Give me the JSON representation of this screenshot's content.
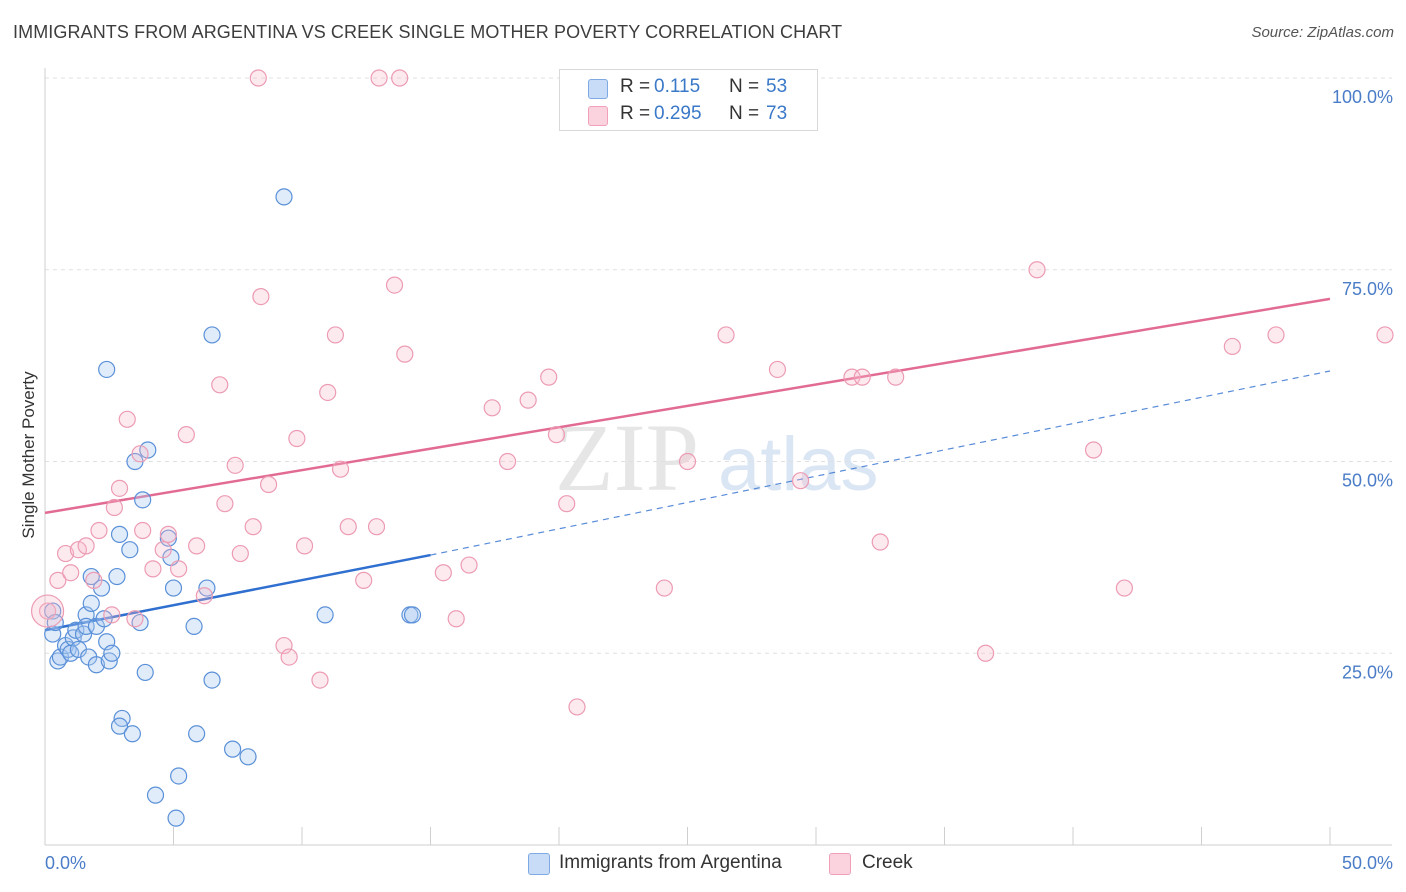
{
  "title": "IMMIGRANTS FROM ARGENTINA VS CREEK SINGLE MOTHER POVERTY CORRELATION CHART",
  "source": "Source: ZipAtlas.com",
  "watermark": {
    "zip": "ZIP",
    "atlas": "atlas"
  },
  "legend": {
    "rows": [
      {
        "r_label": "R =",
        "r_value": "0.115",
        "n_label": "N =",
        "n_value": "53",
        "color": "#a9c8f0"
      },
      {
        "r_label": "R =",
        "r_value": "0.295",
        "n_label": "N =",
        "n_value": "73",
        "color": "#f7b9cb"
      }
    ]
  },
  "bottom_legend": [
    {
      "label": "Immigrants from Argentina",
      "color": "#a9c8f0"
    },
    {
      "label": "Creek",
      "color": "#f7b9cb"
    }
  ],
  "colors": {
    "blue": "#4a86d8",
    "blue_line": "#2f6fcf",
    "pink": "#e8789a",
    "pink_line": "#e26b93"
  },
  "chart_data": {
    "type": "scatter",
    "title": "IMMIGRANTS FROM ARGENTINA VS CREEK SINGLE MOTHER POVERTY CORRELATION CHART",
    "xlabel": "",
    "ylabel": "Single Mother Poverty",
    "xlim": [
      0,
      50
    ],
    "ylim": [
      0,
      100
    ],
    "x_tick_labels": [
      "0.0%",
      "50.0%"
    ],
    "y_tick_labels": [
      "25.0%",
      "50.0%",
      "75.0%",
      "100.0%"
    ],
    "y_ticks": [
      25,
      50,
      75,
      100
    ],
    "grid": true,
    "legend_position": "top-center",
    "series": [
      {
        "name": "Immigrants from Argentina",
        "color": "#4a86d8",
        "points": [
          [
            0.3,
            30.5
          ],
          [
            0.3,
            27.5
          ],
          [
            0.4,
            29.0
          ],
          [
            0.5,
            24.0
          ],
          [
            0.6,
            24.5
          ],
          [
            0.8,
            26.0
          ],
          [
            0.9,
            25.5
          ],
          [
            1.0,
            25.0
          ],
          [
            1.1,
            27.0
          ],
          [
            1.2,
            28.0
          ],
          [
            1.3,
            25.5
          ],
          [
            1.5,
            27.5
          ],
          [
            1.6,
            30.0
          ],
          [
            1.6,
            28.5
          ],
          [
            1.7,
            24.5
          ],
          [
            1.8,
            35.0
          ],
          [
            1.8,
            31.5
          ],
          [
            2.0,
            28.5
          ],
          [
            2.0,
            23.5
          ],
          [
            2.2,
            33.5
          ],
          [
            2.3,
            29.5
          ],
          [
            2.4,
            26.5
          ],
          [
            2.5,
            24.0
          ],
          [
            2.6,
            25.0
          ],
          [
            2.4,
            62.0
          ],
          [
            2.8,
            35.0
          ],
          [
            2.9,
            40.5
          ],
          [
            3.0,
            16.5
          ],
          [
            2.9,
            15.5
          ],
          [
            3.3,
            38.5
          ],
          [
            3.5,
            50.0
          ],
          [
            3.4,
            14.5
          ],
          [
            3.7,
            29.0
          ],
          [
            3.8,
            45.0
          ],
          [
            3.9,
            22.5
          ],
          [
            4.0,
            51.5
          ],
          [
            4.3,
            6.5
          ],
          [
            4.8,
            40.0
          ],
          [
            4.9,
            37.5
          ],
          [
            5.0,
            33.5
          ],
          [
            5.2,
            9.0
          ],
          [
            5.1,
            3.5
          ],
          [
            5.8,
            28.5
          ],
          [
            5.9,
            14.5
          ],
          [
            6.3,
            33.5
          ],
          [
            6.5,
            21.5
          ],
          [
            6.5,
            66.5
          ],
          [
            7.3,
            12.5
          ],
          [
            7.9,
            11.5
          ],
          [
            9.3,
            84.5
          ],
          [
            10.9,
            30.0
          ],
          [
            14.2,
            30.0
          ],
          [
            14.3,
            30.0
          ]
        ]
      },
      {
        "name": "Creek",
        "color": "#e8789a",
        "points": [
          [
            0.1,
            30.5
          ],
          [
            0.5,
            34.5
          ],
          [
            0.8,
            38.0
          ],
          [
            1.0,
            35.5
          ],
          [
            1.3,
            38.5
          ],
          [
            1.6,
            39.0
          ],
          [
            1.9,
            34.5
          ],
          [
            2.1,
            41.0
          ],
          [
            2.6,
            30.0
          ],
          [
            2.7,
            44.0
          ],
          [
            2.9,
            46.5
          ],
          [
            3.2,
            55.5
          ],
          [
            3.5,
            29.5
          ],
          [
            3.7,
            51.0
          ],
          [
            3.8,
            41.0
          ],
          [
            4.2,
            36.0
          ],
          [
            4.6,
            38.5
          ],
          [
            4.8,
            40.5
          ],
          [
            5.2,
            36.0
          ],
          [
            5.5,
            53.5
          ],
          [
            5.9,
            39.0
          ],
          [
            6.2,
            32.5
          ],
          [
            6.8,
            60.0
          ],
          [
            7.0,
            44.5
          ],
          [
            7.4,
            49.5
          ],
          [
            7.6,
            38.0
          ],
          [
            8.1,
            41.5
          ],
          [
            8.3,
            100.0
          ],
          [
            8.4,
            71.5
          ],
          [
            8.7,
            47.0
          ],
          [
            9.3,
            26.0
          ],
          [
            9.5,
            24.5
          ],
          [
            9.8,
            53.0
          ],
          [
            10.1,
            39.0
          ],
          [
            10.7,
            21.5
          ],
          [
            11.0,
            59.0
          ],
          [
            11.3,
            66.5
          ],
          [
            11.5,
            49.0
          ],
          [
            11.8,
            41.5
          ],
          [
            12.4,
            34.5
          ],
          [
            12.9,
            41.5
          ],
          [
            13.0,
            100.0
          ],
          [
            13.6,
            73.0
          ],
          [
            13.8,
            100.0
          ],
          [
            14.0,
            64.0
          ],
          [
            15.5,
            35.5
          ],
          [
            16.0,
            29.5
          ],
          [
            16.5,
            36.5
          ],
          [
            17.4,
            57.0
          ],
          [
            18.0,
            50.0
          ],
          [
            18.8,
            58.0
          ],
          [
            19.6,
            61.0
          ],
          [
            19.9,
            53.5
          ],
          [
            20.3,
            44.5
          ],
          [
            20.7,
            18.0
          ],
          [
            22.1,
            100.0
          ],
          [
            22.6,
            100.0
          ],
          [
            24.1,
            33.5
          ],
          [
            25.0,
            50.0
          ],
          [
            26.5,
            66.5
          ],
          [
            28.5,
            62.0
          ],
          [
            29.4,
            47.5
          ],
          [
            31.4,
            61.0
          ],
          [
            31.8,
            61.0
          ],
          [
            32.5,
            39.5
          ],
          [
            33.1,
            61.0
          ],
          [
            36.6,
            25.0
          ],
          [
            38.6,
            75.0
          ],
          [
            40.8,
            51.5
          ],
          [
            42.0,
            33.5
          ],
          [
            46.2,
            65.0
          ],
          [
            47.9,
            66.5
          ],
          [
            52.5,
            66.5
          ]
        ]
      }
    ],
    "trend_lines": [
      {
        "series": "Immigrants from Argentina",
        "solid": [
          [
            0,
            28.0
          ],
          [
            15.0,
            37.8
          ]
        ],
        "dashed": [
          [
            15.0,
            37.8
          ],
          [
            50.0,
            61.8
          ]
        ]
      },
      {
        "series": "Creek",
        "solid": [
          [
            0,
            43.3
          ],
          [
            50.0,
            71.2
          ]
        ]
      }
    ]
  }
}
